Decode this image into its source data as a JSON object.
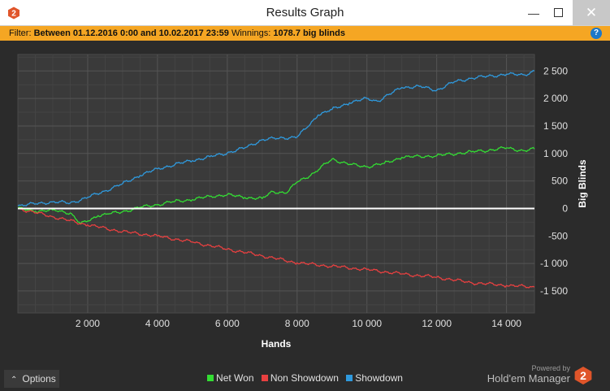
{
  "window": {
    "title": "Results Graph"
  },
  "filter": {
    "label": "Filter:",
    "value": "Between 01.12.2016 0:00 and 10.02.2017 23:59",
    "winnings_label": "Winnings:",
    "winnings_value": "1078.7 big blinds"
  },
  "help_icon": "help-icon",
  "chart_data": {
    "type": "line",
    "xlabel": "Hands",
    "ylabel": "Big Blinds",
    "xlim": [
      0,
      14800
    ],
    "ylim": [
      -1900,
      2800
    ],
    "x_ticks": [
      2000,
      4000,
      6000,
      8000,
      10000,
      12000,
      14000
    ],
    "x_tick_labels": [
      "2 000",
      "4 000",
      "6 000",
      "8 000",
      "10 000",
      "12 000",
      "14 000"
    ],
    "y_ticks": [
      2500,
      2000,
      1500,
      1000,
      500,
      0,
      -500,
      -1000,
      -1500
    ],
    "y_tick_labels": [
      "2 500",
      "2 000",
      "1 500",
      "1 000",
      "500",
      "0",
      "-500",
      "-1 000",
      "-1 500"
    ],
    "grid": true,
    "legend_position": "bottom",
    "series": [
      {
        "name": "Net Won",
        "color": "#33dd33",
        "x": [
          0,
          500,
          1000,
          1500,
          1800,
          2000,
          2300,
          2600,
          3000,
          3500,
          4000,
          4500,
          5000,
          5500,
          6000,
          6500,
          7000,
          7300,
          7700,
          8000,
          8500,
          9000,
          9500,
          10000,
          10500,
          11000,
          12000,
          13000,
          13500,
          14000,
          14500,
          14800
        ],
        "y": [
          0,
          -50,
          -30,
          -80,
          -280,
          -230,
          -130,
          -100,
          -60,
          20,
          70,
          130,
          160,
          220,
          250,
          200,
          180,
          310,
          280,
          480,
          650,
          900,
          800,
          760,
          820,
          930,
          960,
          1030,
          1060,
          1100,
          1050,
          1080
        ]
      },
      {
        "name": "Non Showdown",
        "color": "#e84040",
        "x": [
          0,
          1000,
          2000,
          3000,
          4000,
          5000,
          6000,
          7000,
          8000,
          9000,
          10000,
          11000,
          12000,
          13000,
          14000,
          14800
        ],
        "y": [
          0,
          -150,
          -300,
          -420,
          -500,
          -610,
          -740,
          -860,
          -990,
          -1050,
          -1110,
          -1190,
          -1250,
          -1350,
          -1400,
          -1430
        ]
      },
      {
        "name": "Showdown",
        "color": "#2f9ade",
        "x": [
          0,
          1000,
          1500,
          2000,
          2500,
          3000,
          3500,
          4000,
          4500,
          5000,
          5500,
          6000,
          6500,
          7000,
          7500,
          8000,
          8300,
          8600,
          9000,
          9500,
          10000,
          10300,
          11000,
          11500,
          12000,
          12500,
          13000,
          14000,
          14500,
          14800
        ],
        "y": [
          50,
          120,
          100,
          200,
          320,
          450,
          600,
          720,
          800,
          870,
          940,
          1010,
          1100,
          1250,
          1280,
          1300,
          1480,
          1700,
          1800,
          1920,
          2000,
          1950,
          2200,
          2220,
          2150,
          2300,
          2370,
          2440,
          2430,
          2500
        ]
      }
    ]
  },
  "legend": {
    "items": [
      {
        "label": "Net Won",
        "color": "#33dd33"
      },
      {
        "label": "Non Showdown",
        "color": "#e84040"
      },
      {
        "label": "Showdown",
        "color": "#2f9ade"
      }
    ]
  },
  "options": {
    "label": "Options"
  },
  "branding": {
    "powered_by": "Powered by",
    "product": "Hold'em Manager",
    "logo_text": "2"
  }
}
